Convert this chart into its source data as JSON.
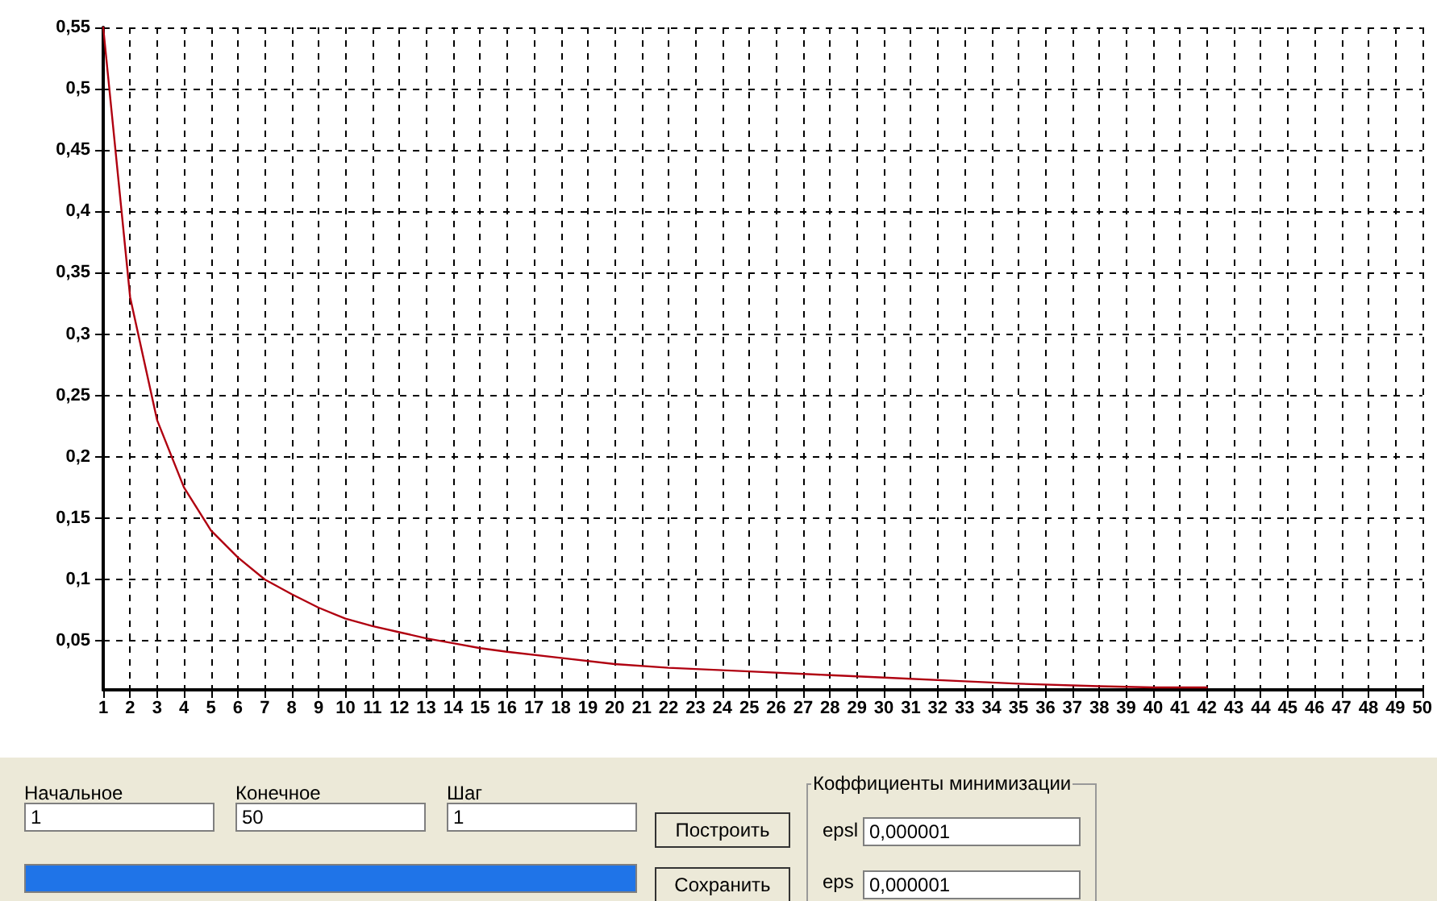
{
  "chart_data": {
    "type": "line",
    "x": [
      1,
      2,
      3,
      4,
      5,
      6,
      7,
      8,
      9,
      10,
      11,
      12,
      13,
      14,
      15,
      16,
      18,
      20,
      22,
      25,
      28,
      30,
      33,
      35,
      38,
      40,
      42
    ],
    "series": [
      {
        "color": "#b00010",
        "values": [
          0.55,
          0.33,
          0.23,
          0.175,
          0.14,
          0.118,
          0.1,
          0.088,
          0.077,
          0.068,
          0.062,
          0.057,
          0.052,
          0.048,
          0.044,
          0.041,
          0.036,
          0.031,
          0.028,
          0.025,
          0.022,
          0.02,
          0.017,
          0.015,
          0.013,
          0.012,
          0.012
        ]
      }
    ],
    "xlim": [
      1,
      50
    ],
    "xticks": [
      1,
      2,
      3,
      4,
      5,
      6,
      7,
      8,
      9,
      10,
      11,
      12,
      13,
      14,
      15,
      16,
      17,
      18,
      19,
      20,
      21,
      22,
      23,
      24,
      25,
      26,
      27,
      28,
      29,
      30,
      31,
      32,
      33,
      34,
      35,
      36,
      37,
      38,
      39,
      40,
      41,
      42,
      43,
      44,
      45,
      46,
      47,
      48,
      49,
      50
    ],
    "ylim": [
      0.01,
      0.55
    ],
    "yticks": [
      {
        "value": 0.05,
        "label": "0,05"
      },
      {
        "value": 0.1,
        "label": "0,1"
      },
      {
        "value": 0.15,
        "label": "0,15"
      },
      {
        "value": 0.2,
        "label": "0,2"
      },
      {
        "value": 0.25,
        "label": "0,25"
      },
      {
        "value": 0.3,
        "label": "0,3"
      },
      {
        "value": 0.35,
        "label": "0,35"
      },
      {
        "value": 0.4,
        "label": "0,4"
      },
      {
        "value": 0.45,
        "label": "0,45"
      },
      {
        "value": 0.5,
        "label": "0,5"
      },
      {
        "value": 0.55,
        "label": "0,55"
      }
    ],
    "grid": true,
    "marker": "none",
    "line_style": "solid",
    "annotations": [
      "Начальное",
      "1",
      "Конечное",
      "50",
      "Шаг",
      "1",
      "Построить",
      "Сохранить",
      "Коффициенты минимизации",
      "epsl",
      "0,000001",
      "eps",
      "0,000001"
    ]
  }
}
